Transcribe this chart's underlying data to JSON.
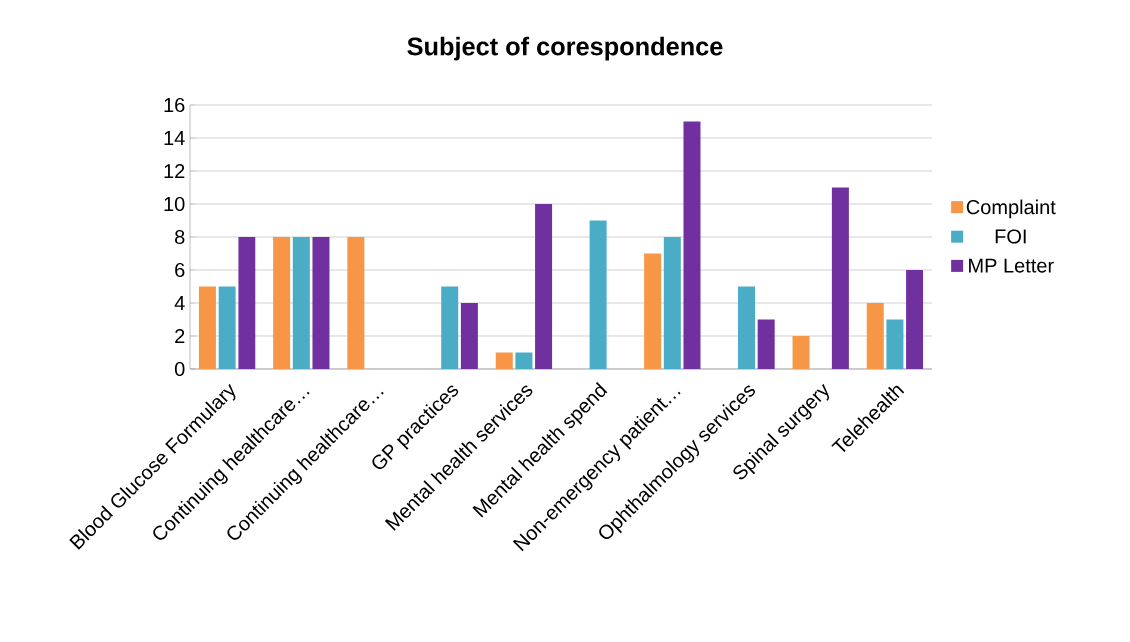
{
  "chart_data": {
    "type": "bar",
    "title": "Subject of corespondence",
    "categories": [
      "Blood Glucose Formulary",
      "Continuing healthcare…",
      "Continuing healthcare…",
      "GP practices",
      "Mental health services",
      "Mental health spend",
      "Non-emergency patient…",
      "Ophthalmology services",
      "Spinal surgery",
      "Telehealth"
    ],
    "series": [
      {
        "name": "Complaint",
        "color": "#f79646",
        "values": [
          5,
          8,
          8,
          null,
          1,
          null,
          7,
          null,
          2,
          4
        ]
      },
      {
        "name": "FOI",
        "color": "#4bacc6",
        "values": [
          5,
          8,
          null,
          5,
          1,
          9,
          8,
          5,
          null,
          3
        ]
      },
      {
        "name": "MP Letter",
        "color": "#7030a0",
        "values": [
          8,
          8,
          null,
          4,
          10,
          null,
          15,
          3,
          11,
          6
        ]
      }
    ],
    "ylim": [
      0,
      16
    ],
    "yticks": [
      0,
      2,
      4,
      6,
      8,
      10,
      12,
      14,
      16
    ],
    "grid": "y",
    "legend": "right"
  }
}
